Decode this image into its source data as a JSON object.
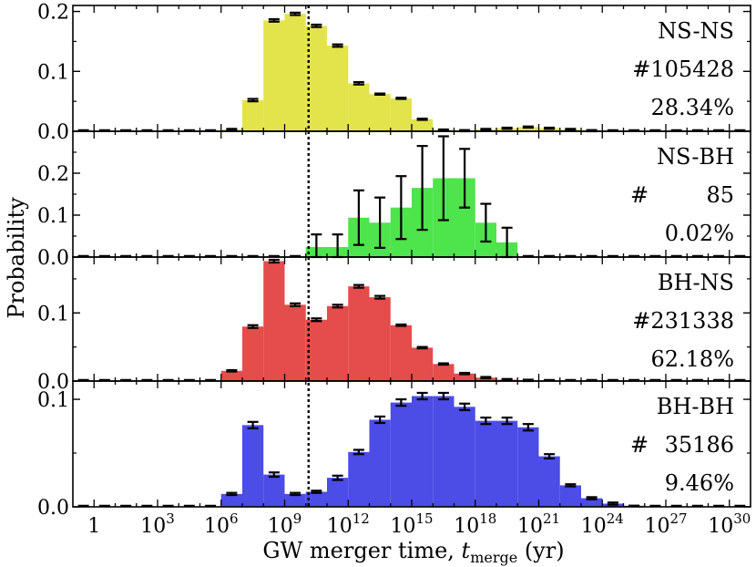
{
  "chart_data": {
    "type": "bar",
    "xlabel": "GW merger time, t_merge (yr)",
    "xlabel_main": "GW merger time, ",
    "xlabel_var": "t",
    "xlabel_sub": "merge",
    "xlabel_unit": " (yr)",
    "ylabel": "Probability",
    "x_scale": "log10",
    "xlim_log10": [
      -1,
      31
    ],
    "x_bin_width_log10": 1,
    "x_bin_lefts_log10": [
      -1,
      0,
      1,
      2,
      3,
      4,
      5,
      6,
      7,
      8,
      9,
      10,
      11,
      12,
      13,
      14,
      15,
      16,
      17,
      18,
      19,
      20,
      21,
      22,
      23,
      24,
      25,
      26,
      27,
      28,
      29,
      30
    ],
    "x_ticks": [
      {
        "label": "1",
        "exp": "",
        "value_log10": 0
      },
      {
        "label": "10",
        "exp": "3",
        "value_log10": 3
      },
      {
        "label": "10",
        "exp": "6",
        "value_log10": 6
      },
      {
        "label": "10",
        "exp": "9",
        "value_log10": 9
      },
      {
        "label": "10",
        "exp": "12",
        "value_log10": 12
      },
      {
        "label": "10",
        "exp": "15",
        "value_log10": 15
      },
      {
        "label": "10",
        "exp": "18",
        "value_log10": 18
      },
      {
        "label": "10",
        "exp": "21",
        "value_log10": 21
      },
      {
        "label": "10",
        "exp": "24",
        "value_log10": 24
      },
      {
        "label": "10",
        "exp": "27",
        "value_log10": 27
      },
      {
        "label": "10",
        "exp": "30",
        "value_log10": 30
      }
    ],
    "vline_log10": 10.13,
    "vline_style": "dotted",
    "panels": [
      {
        "name": "NS-NS",
        "count": "#105428",
        "fraction": "28.34%",
        "color": "#e3e34c",
        "ylim": [
          0,
          0.21
        ],
        "y_ticks": [
          "0.0",
          "0.1",
          "0.2"
        ],
        "y_tick_values": [
          0,
          0.1,
          0.2
        ],
        "values": [
          0,
          0,
          0,
          0,
          0,
          0,
          0,
          0.003,
          0.052,
          0.185,
          0.196,
          0.176,
          0.143,
          0.08,
          0.062,
          0.055,
          0.02,
          0.002,
          0.001,
          0.003,
          0.005,
          0.007,
          0.005,
          0.003,
          0.001,
          0,
          0,
          0,
          0,
          0,
          0,
          0
        ],
        "errors": [
          0,
          0,
          0,
          0,
          0,
          0,
          0,
          0.001,
          0.002,
          0.002,
          0.002,
          0.002,
          0.002,
          0.002,
          0.001,
          0.001,
          0.001,
          0.001,
          0.001,
          0.001,
          0.001,
          0.001,
          0.001,
          0.001,
          0.001,
          0,
          0,
          0,
          0,
          0,
          0,
          0
        ]
      },
      {
        "name": "NS-BH",
        "count_symbol": "#",
        "count": "85",
        "fraction": "0.02%",
        "color": "#4ee44c",
        "ylim": [
          0,
          0.3
        ],
        "y_ticks": [
          "0.0",
          "0.1",
          "0.2"
        ],
        "y_tick_values": [
          0,
          0.1,
          0.2
        ],
        "values": [
          0,
          0,
          0,
          0,
          0,
          0,
          0,
          0,
          0,
          0,
          0,
          0.024,
          0.024,
          0.094,
          0.082,
          0.118,
          0.165,
          0.188,
          0.188,
          0.082,
          0.035,
          0,
          0,
          0,
          0,
          0,
          0,
          0,
          0,
          0,
          0,
          0
        ],
        "errors": [
          0,
          0,
          0,
          0,
          0,
          0,
          0,
          0,
          0,
          0,
          0,
          0.03,
          0.03,
          0.065,
          0.06,
          0.075,
          0.1,
          0.1,
          0.07,
          0.045,
          0.035,
          0,
          0,
          0,
          0,
          0,
          0,
          0,
          0,
          0,
          0,
          0
        ]
      },
      {
        "name": "BH-NS",
        "count": "#231338",
        "fraction": "62.18%",
        "color": "#e54c4c",
        "ylim": [
          0,
          0.182
        ],
        "y_ticks": [
          "0.0",
          "0.1"
        ],
        "y_tick_values": [
          0,
          0.1
        ],
        "values": [
          0,
          0,
          0,
          0,
          0,
          0,
          0,
          0.015,
          0.08,
          0.176,
          0.112,
          0.09,
          0.11,
          0.139,
          0.123,
          0.082,
          0.049,
          0.025,
          0.011,
          0.005,
          0.002,
          0.001,
          0,
          0,
          0,
          0,
          0,
          0,
          0,
          0,
          0,
          0
        ],
        "errors": [
          0,
          0,
          0,
          0,
          0,
          0,
          0,
          0.001,
          0.002,
          0.002,
          0.002,
          0.002,
          0.002,
          0.002,
          0.002,
          0.001,
          0.001,
          0.001,
          0.001,
          0.001,
          0.001,
          0.001,
          0,
          0,
          0,
          0,
          0,
          0,
          0,
          0,
          0,
          0
        ]
      },
      {
        "name": "BH-BH",
        "count_symbol": "#",
        "count": "35186",
        "fraction": "9.46%",
        "color": "#4c4ce6",
        "ylim": [
          0,
          0.117
        ],
        "y_ticks": [
          "0.0",
          "0.1"
        ],
        "y_tick_values": [
          0,
          0.1
        ],
        "values": [
          0,
          0,
          0,
          0,
          0,
          0,
          0,
          0.012,
          0.076,
          0.03,
          0.012,
          0.014,
          0.027,
          0.051,
          0.081,
          0.097,
          0.103,
          0.103,
          0.093,
          0.08,
          0.08,
          0.074,
          0.047,
          0.02,
          0.008,
          0.003,
          0.001,
          0,
          0,
          0,
          0,
          0
        ],
        "errors": [
          0,
          0,
          0,
          0,
          0,
          0,
          0,
          0.001,
          0.003,
          0.002,
          0.001,
          0.001,
          0.002,
          0.002,
          0.003,
          0.003,
          0.003,
          0.003,
          0.003,
          0.003,
          0.003,
          0.003,
          0.002,
          0.001,
          0.001,
          0.001,
          0,
          0,
          0,
          0,
          0,
          0
        ]
      }
    ]
  }
}
